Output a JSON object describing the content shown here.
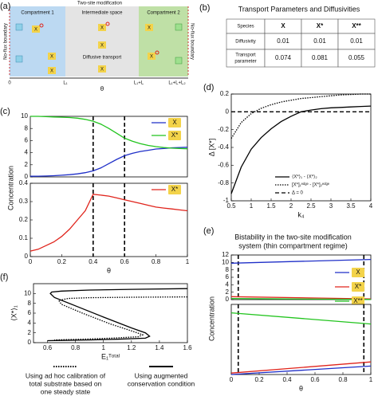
{
  "panels": [
    "(a)",
    "(b)",
    "(c)",
    "(d)",
    "(e)",
    "(f)"
  ],
  "diagram": {
    "title": "Two-site modification",
    "compartment1": "Compartment 1",
    "intermediate": "Intermediate space",
    "compartment2": "Compartment 2",
    "transport": "Diffusive transport",
    "boundary": "No-flux boundary",
    "axis_label": "θ",
    "axis_ticks": [
      "0",
      "L₁",
      "L₁+L",
      "L₁+L+L₂"
    ],
    "icon": "X"
  },
  "table": {
    "title": "Transport Parameters and Diffusivities",
    "header": [
      "Species",
      "X",
      "X*",
      "X**"
    ],
    "rows": [
      [
        "Diffusivity",
        0.01,
        0.01,
        0.01
      ],
      [
        "Transport parameter",
        0.074,
        0.081,
        0.055
      ]
    ]
  },
  "chart_data": [
    {
      "type": "line",
      "ylim": [
        0,
        10
      ],
      "yticks": [
        0,
        2,
        4,
        6,
        8,
        10
      ],
      "xlim": [
        0,
        1
      ],
      "vlines": [
        0.4,
        0.6
      ],
      "legend": "upper right",
      "legend_box": "#f3d34a",
      "ylabel": "Concentration",
      "series": [
        {
          "name": "X",
          "color": "#1f2fc8",
          "dash": "solid",
          "x": [
            0,
            0.05,
            0.1,
            0.15,
            0.2,
            0.25,
            0.3,
            0.35,
            0.4,
            0.45,
            0.5,
            0.55,
            0.6,
            0.65,
            0.7,
            0.75,
            0.8,
            0.85,
            0.9,
            0.95,
            1
          ],
          "values": [
            0.1,
            0.12,
            0.15,
            0.2,
            0.27,
            0.37,
            0.5,
            0.7,
            1.0,
            1.5,
            2.2,
            2.9,
            3.5,
            3.9,
            4.2,
            4.4,
            4.6,
            4.7,
            4.8,
            4.85,
            4.9
          ]
        },
        {
          "name": "X*",
          "color": "#22c41e",
          "dash": "solid",
          "x": [
            0,
            0.05,
            0.1,
            0.15,
            0.2,
            0.25,
            0.3,
            0.35,
            0.4,
            0.45,
            0.5,
            0.55,
            0.6,
            0.65,
            0.7,
            0.75,
            0.8,
            0.85,
            0.9,
            0.95,
            1
          ],
          "values": [
            10,
            10,
            9.95,
            9.9,
            9.85,
            9.8,
            9.7,
            9.5,
            9.2,
            8.7,
            8.0,
            7.2,
            6.4,
            5.9,
            5.5,
            5.2,
            5.0,
            4.85,
            4.75,
            4.7,
            4.65
          ]
        }
      ]
    },
    {
      "type": "line",
      "ylim": [
        0,
        0.4
      ],
      "yticks": [
        0,
        0.1,
        0.2,
        0.3,
        0.4
      ],
      "xlim": [
        0,
        1
      ],
      "xticks": [
        0,
        0.2,
        0.4,
        0.6,
        0.8,
        1
      ],
      "xlabel": "θ",
      "vlines": [
        0.4,
        0.6
      ],
      "legend": "upper right",
      "legend_box": "#f3d34a",
      "series": [
        {
          "name": "X*",
          "color": "#e0241c",
          "dash": "solid",
          "x": [
            0,
            0.05,
            0.1,
            0.15,
            0.2,
            0.25,
            0.3,
            0.35,
            0.4,
            0.45,
            0.5,
            0.55,
            0.6,
            0.65,
            0.7,
            0.75,
            0.8,
            0.85,
            0.9,
            0.95,
            1
          ],
          "values": [
            0.03,
            0.04,
            0.06,
            0.08,
            0.11,
            0.15,
            0.2,
            0.25,
            0.34,
            0.335,
            0.33,
            0.32,
            0.31,
            0.3,
            0.29,
            0.28,
            0.27,
            0.265,
            0.26,
            0.255,
            0.25
          ]
        }
      ]
    },
    {
      "type": "line",
      "ylim": [
        -1,
        0.2
      ],
      "yticks": [
        -1,
        -0.8,
        -0.6,
        -0.4,
        -0.2,
        0,
        0.2
      ],
      "xlim": [
        0.5,
        4
      ],
      "xticks": [
        0.5,
        1,
        1.5,
        2,
        2.5,
        3,
        3.5,
        4
      ],
      "xlabel": "k₄",
      "ylabel": "Δ [X*]",
      "legend": "lower right",
      "series": [
        {
          "name": "⟨X*⟩₁ - ⟨X*⟩₂",
          "color": "#000000",
          "dash": "solid",
          "x": [
            0.5,
            0.75,
            1,
            1.25,
            1.5,
            1.75,
            2,
            2.25,
            2.5,
            2.75,
            3,
            3.25,
            3.5,
            3.75,
            4
          ],
          "values": [
            -0.92,
            -0.62,
            -0.42,
            -0.29,
            -0.19,
            -0.11,
            -0.05,
            0,
            0.02,
            0.035,
            0.045,
            0.05,
            0.055,
            0.06,
            0.065
          ]
        },
        {
          "name": "[X*]₁ᵉᵈᵍᵉ - [X*]₂ᵉᵈᵍᵉ",
          "color": "#000000",
          "dash": "dotted",
          "x": [
            0.5,
            0.75,
            1,
            1.25,
            1.5,
            1.75,
            2,
            2.25,
            2.5,
            2.75,
            3,
            3.25,
            3.5,
            3.75,
            4
          ],
          "values": [
            -0.3,
            -0.12,
            -0.02,
            0.04,
            0.08,
            0.11,
            0.13,
            0.15,
            0.16,
            0.17,
            0.18,
            0.19,
            0.195,
            0.2,
            0.2
          ]
        },
        {
          "name": "Δ = 0",
          "color": "#000000",
          "dash": "dashed",
          "x": [
            0.5,
            4
          ],
          "values": [
            0,
            0
          ]
        }
      ]
    },
    {
      "type": "line",
      "title": [
        "Bistability in the two-site modification",
        "system (thin compartment regime)"
      ],
      "ylim": [
        0,
        12
      ],
      "yticks": [
        0,
        2,
        4,
        6,
        8,
        10,
        12
      ],
      "xlim": [
        0,
        1
      ],
      "vlines": [
        0.05,
        0.95
      ],
      "legend": "right",
      "legend_box": "#f3d34a",
      "ylabel": "Concentration",
      "series": [
        {
          "name": "X",
          "color": "#1f2fc8",
          "dash": "solid",
          "x": [
            0,
            1
          ],
          "values": [
            9.8,
            10.8
          ]
        },
        {
          "name": "X*",
          "color": "#e0241c",
          "dash": "solid",
          "x": [
            0,
            1
          ],
          "values": [
            0.8,
            0.2
          ]
        },
        {
          "name": "X**",
          "color": "#22c41e",
          "dash": "solid",
          "x": [
            0,
            1
          ],
          "values": [
            0.3,
            0.05
          ]
        }
      ]
    },
    {
      "type": "line",
      "ylim": [
        0,
        1
      ],
      "xlim": [
        0,
        1
      ],
      "xticks": [
        0,
        0.2,
        0.4,
        0.6,
        0.8,
        1
      ],
      "xlabel": "θ",
      "vlines": [
        0.05,
        0.95
      ],
      "series": [
        {
          "color": "#1f2fc8",
          "dash": "solid",
          "x": [
            0,
            1
          ],
          "values": [
            0.0,
            0.12
          ]
        },
        {
          "color": "#e0241c",
          "dash": "solid",
          "x": [
            0,
            1
          ],
          "values": [
            0.02,
            0.18
          ]
        },
        {
          "color": "#22c41e",
          "dash": "solid",
          "x": [
            0,
            1
          ],
          "values": [
            0.88,
            0.72
          ]
        }
      ]
    },
    {
      "type": "line",
      "ylim": [
        0,
        12
      ],
      "yticks": [
        0,
        2,
        4,
        6,
        8,
        10
      ],
      "xlim": [
        0.5,
        1.6
      ],
      "xticks": [
        0.6,
        0.8,
        1,
        1.2,
        1.4,
        1.6
      ],
      "xlabel": "E₁ᵀᵒᵗᵃˡ",
      "ylabel": "⟨X*⟩₁",
      "series": [
        {
          "color": "#000000",
          "dash": "solid",
          "x": [
            1.6,
            1.2,
            0.9,
            0.7,
            0.63,
            0.62,
            0.65,
            0.8,
            1.0,
            1.2,
            1.3,
            1.33,
            1.3,
            1.1,
            0.9,
            0.7,
            0.6
          ],
          "values": [
            11,
            10.85,
            10.7,
            10.5,
            10.3,
            10,
            9.2,
            7.5,
            5.2,
            3,
            2,
            1.3,
            0.9,
            0.7,
            0.55,
            0.45,
            0.4
          ]
        },
        {
          "color": "#000000",
          "dash": "dotted",
          "x": [
            1.6,
            1.2,
            0.9,
            0.75,
            0.68,
            0.7,
            0.85,
            1.05,
            1.2,
            1.28,
            1.25,
            1.05,
            0.85,
            0.65
          ],
          "values": [
            9.3,
            9.25,
            9.15,
            9.0,
            8.6,
            7.8,
            6.0,
            3.8,
            2.4,
            1.6,
            1.2,
            0.9,
            0.7,
            0.55
          ]
        }
      ],
      "annotations": [
        {
          "dash": "dotted",
          "lines": [
            "Using ad hoc calibration of",
            "total substrate based on",
            "one steady state"
          ]
        },
        {
          "dash": "solid",
          "lines": [
            "Using augmented",
            "conservation condition"
          ]
        }
      ]
    }
  ]
}
